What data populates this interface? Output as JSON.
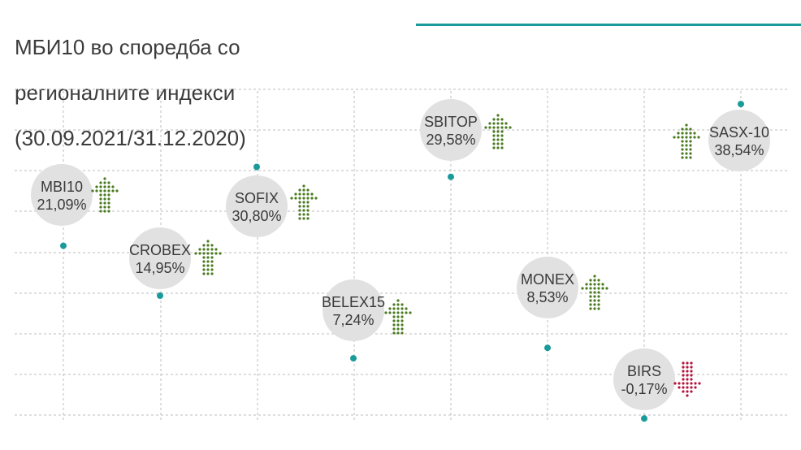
{
  "title_lines": [
    "МБИ10 во споредба со",
    "регионалните индекси",
    "(30.09.2021/31.12.2020)"
  ],
  "colors": {
    "teal": "#1a9a9a",
    "up": "#4a7a1f",
    "down": "#b5143a",
    "bubble": "#e1e1e1",
    "grid": "#bcbcbc"
  },
  "chart_data": {
    "type": "scatter",
    "title": "МБИ10 во споредба со регионалните индекси (30.09.2021/31.12.2020)",
    "xlabel": "",
    "ylabel": "",
    "grid": true,
    "ylim": [
      -0.17,
      38.54
    ],
    "points": [
      {
        "name": "MBI10",
        "label": "21,09%",
        "value": 21.09,
        "direction": "up"
      },
      {
        "name": "CROBEX",
        "label": "14,95%",
        "value": 14.95,
        "direction": "up"
      },
      {
        "name": "SOFIX",
        "label": "30,80%",
        "value": 30.8,
        "direction": "up"
      },
      {
        "name": "BELEX15",
        "label": "7,24%",
        "value": 7.24,
        "direction": "up"
      },
      {
        "name": "SBITOP",
        "label": "29,58%",
        "value": 29.58,
        "direction": "up"
      },
      {
        "name": "MONEX",
        "label": "8,53%",
        "value": 8.53,
        "direction": "up"
      },
      {
        "name": "BIRS",
        "label": "-0,17%",
        "value": -0.17,
        "direction": "down"
      },
      {
        "name": "SASX-10",
        "label": "38,54%",
        "value": 38.54,
        "direction": "up"
      }
    ]
  }
}
